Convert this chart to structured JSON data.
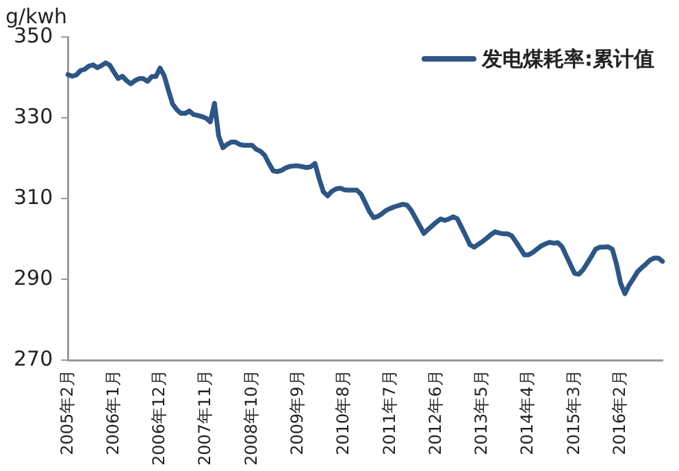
{
  "chart_data": {
    "type": "line",
    "ylabel": "g/kwh",
    "legend": "top right",
    "marker": "none",
    "line_style": "solid",
    "grid": false,
    "categories": [
      "2005年2月",
      null,
      null,
      null,
      null,
      null,
      null,
      null,
      null,
      null,
      null,
      "2006年1月",
      null,
      null,
      null,
      null,
      null,
      null,
      null,
      null,
      null,
      null,
      "2006年12月",
      null,
      null,
      null,
      null,
      null,
      null,
      null,
      null,
      null,
      null,
      "2007年11月",
      null,
      null,
      null,
      null,
      null,
      null,
      null,
      null,
      null,
      null,
      "2008年10月",
      null,
      null,
      null,
      null,
      null,
      null,
      null,
      null,
      null,
      null,
      "2009年9月",
      null,
      null,
      null,
      null,
      null,
      null,
      null,
      null,
      null,
      null,
      "2010年8月",
      null,
      null,
      null,
      null,
      null,
      null,
      null,
      null,
      null,
      null,
      "2011年7月",
      null,
      null,
      null,
      null,
      null,
      null,
      null,
      null,
      null,
      null,
      "2012年6月",
      null,
      null,
      null,
      null,
      null,
      null,
      null,
      null,
      null,
      null,
      "2013年5月",
      null,
      null,
      null,
      null,
      null,
      null,
      null,
      null,
      null,
      null,
      "2014年4月",
      null,
      null,
      null,
      null,
      null,
      null,
      null,
      null,
      null,
      null,
      "2015年3月",
      null,
      null,
      null,
      null,
      null,
      null,
      null,
      null,
      null,
      null,
      "2016年2月",
      null,
      null,
      null,
      null,
      null,
      null,
      null,
      null,
      null,
      null
    ],
    "ylim": [
      270,
      350
    ],
    "yticks": [
      270,
      290,
      310,
      330,
      350
    ],
    "series": [
      {
        "name": "发电煤耗率:累计值",
        "color": "#2e5684",
        "values": [
          340.7,
          340.3,
          340.6,
          341.7,
          342.0,
          342.8,
          343.1,
          342.4,
          342.9,
          343.6,
          343.0,
          341.3,
          339.7,
          340.3,
          339.2,
          338.4,
          339.2,
          339.7,
          339.7,
          339.0,
          340.2,
          340.2,
          342.3,
          340.4,
          336.8,
          333.4,
          332.0,
          331.1,
          331.1,
          331.7,
          330.8,
          330.6,
          330.3,
          329.9,
          329.0,
          333.6,
          325.5,
          322.6,
          323.4,
          324.0,
          324.0,
          323.4,
          323.2,
          323.2,
          323.2,
          322.2,
          321.7,
          320.7,
          318.7,
          316.9,
          316.7,
          317.0,
          317.6,
          318.0,
          318.1,
          318.1,
          317.9,
          317.7,
          317.9,
          318.7,
          314.9,
          311.7,
          310.7,
          311.8,
          312.4,
          312.6,
          312.2,
          312.1,
          312.1,
          312.1,
          311.1,
          309.0,
          306.8,
          305.3,
          305.6,
          306.3,
          307.1,
          307.6,
          308.0,
          308.3,
          308.6,
          308.4,
          307.1,
          305.2,
          303.3,
          301.4,
          302.4,
          303.3,
          304.2,
          305.0,
          304.6,
          305.0,
          305.5,
          305.0,
          302.9,
          300.8,
          298.6,
          298.0,
          298.7,
          299.4,
          300.2,
          301.1,
          301.8,
          301.5,
          301.3,
          301.3,
          300.8,
          299.3,
          297.7,
          296.1,
          296.1,
          296.7,
          297.5,
          298.3,
          298.8,
          299.2,
          299.0,
          299.1,
          298.1,
          295.9,
          293.7,
          291.5,
          291.3,
          292.4,
          294.0,
          295.7,
          297.5,
          298.0,
          298.0,
          298.1,
          297.5,
          293.8,
          289.0,
          286.5,
          288.6,
          290.2,
          291.9,
          292.9,
          293.8,
          294.8,
          295.3,
          295.3,
          294.5
        ]
      }
    ]
  }
}
